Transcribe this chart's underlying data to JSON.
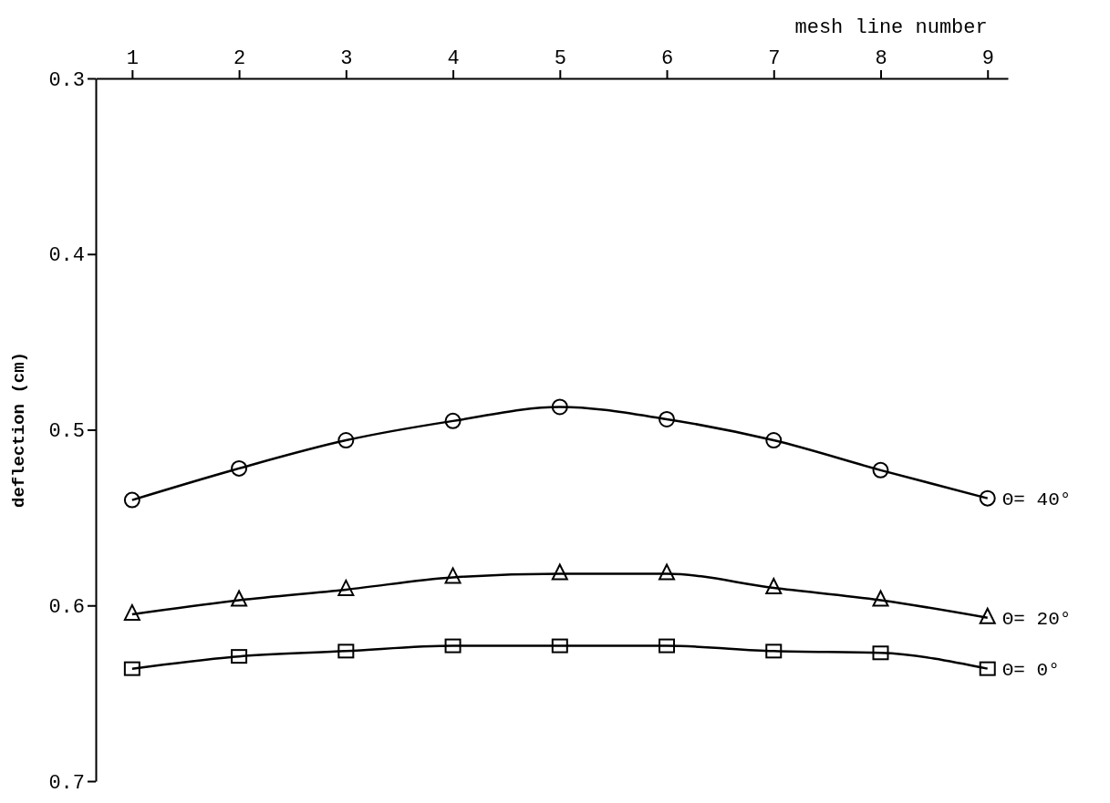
{
  "chart_data": {
    "type": "line",
    "xlabel": "mesh line number",
    "ylabel": "deflection (cm)",
    "x": [
      1,
      2,
      3,
      4,
      5,
      6,
      7,
      8,
      9
    ],
    "xlim": [
      0.66,
      9.19
    ],
    "xticks": [
      1,
      2,
      3,
      4,
      5,
      6,
      7,
      8,
      9
    ],
    "ylim": [
      0.7,
      0.3
    ],
    "yticks": [
      {
        "value": 0.3,
        "label": "0.3"
      },
      {
        "value": 0.4,
        "label": "0.4"
      },
      {
        "value": 0.5,
        "label": "0.5"
      },
      {
        "value": 0.6,
        "label": "0.6"
      },
      {
        "value": 0.7,
        "label": "0.7"
      }
    ],
    "grid": false,
    "legend": false,
    "line_style": "solid",
    "series": [
      {
        "name": "Θ= 40°",
        "color": "#000000",
        "marker": "circle",
        "values": [
          0.54,
          0.522,
          0.506,
          0.495,
          0.487,
          0.494,
          0.506,
          0.523,
          0.539
        ]
      },
      {
        "name": "Θ= 20°",
        "color": "#000000",
        "marker": "triangle",
        "values": [
          0.605,
          0.597,
          0.591,
          0.584,
          0.582,
          0.582,
          0.59,
          0.597,
          0.607
        ]
      },
      {
        "name": "Θ= 0°",
        "color": "#000000",
        "marker": "square",
        "values": [
          0.636,
          0.629,
          0.626,
          0.623,
          0.623,
          0.623,
          0.626,
          0.627,
          0.636
        ]
      }
    ]
  }
}
